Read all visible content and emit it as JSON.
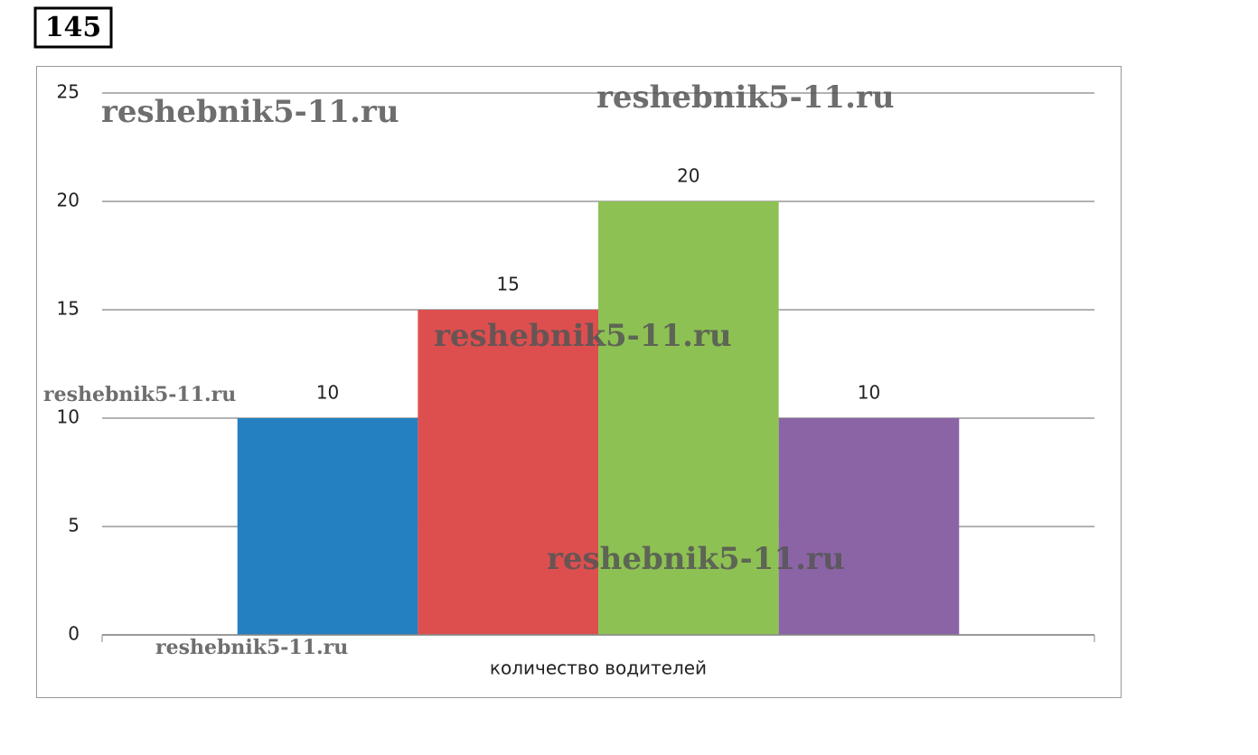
{
  "problem_number": "145",
  "chart_data": {
    "type": "bar",
    "x_label": "количество водителей",
    "categories": [
      null,
      null,
      null,
      null
    ],
    "values": [
      10,
      15,
      20,
      10
    ],
    "colors": [
      "#2480c0",
      "#dd4f4f",
      "#8ec153",
      "#8b64a6"
    ],
    "ylim": [
      0,
      25
    ],
    "yticks": [
      0,
      5,
      10,
      15,
      20,
      25
    ],
    "grid": true,
    "annotations": [
      "reshebnik5-11.ru",
      "reshebnik5-11.ru",
      "reshebnik5-11.ru",
      "reshebnik5-11.ru",
      "reshebnik5-11.ru",
      "reshebnik5-11.ru"
    ]
  }
}
